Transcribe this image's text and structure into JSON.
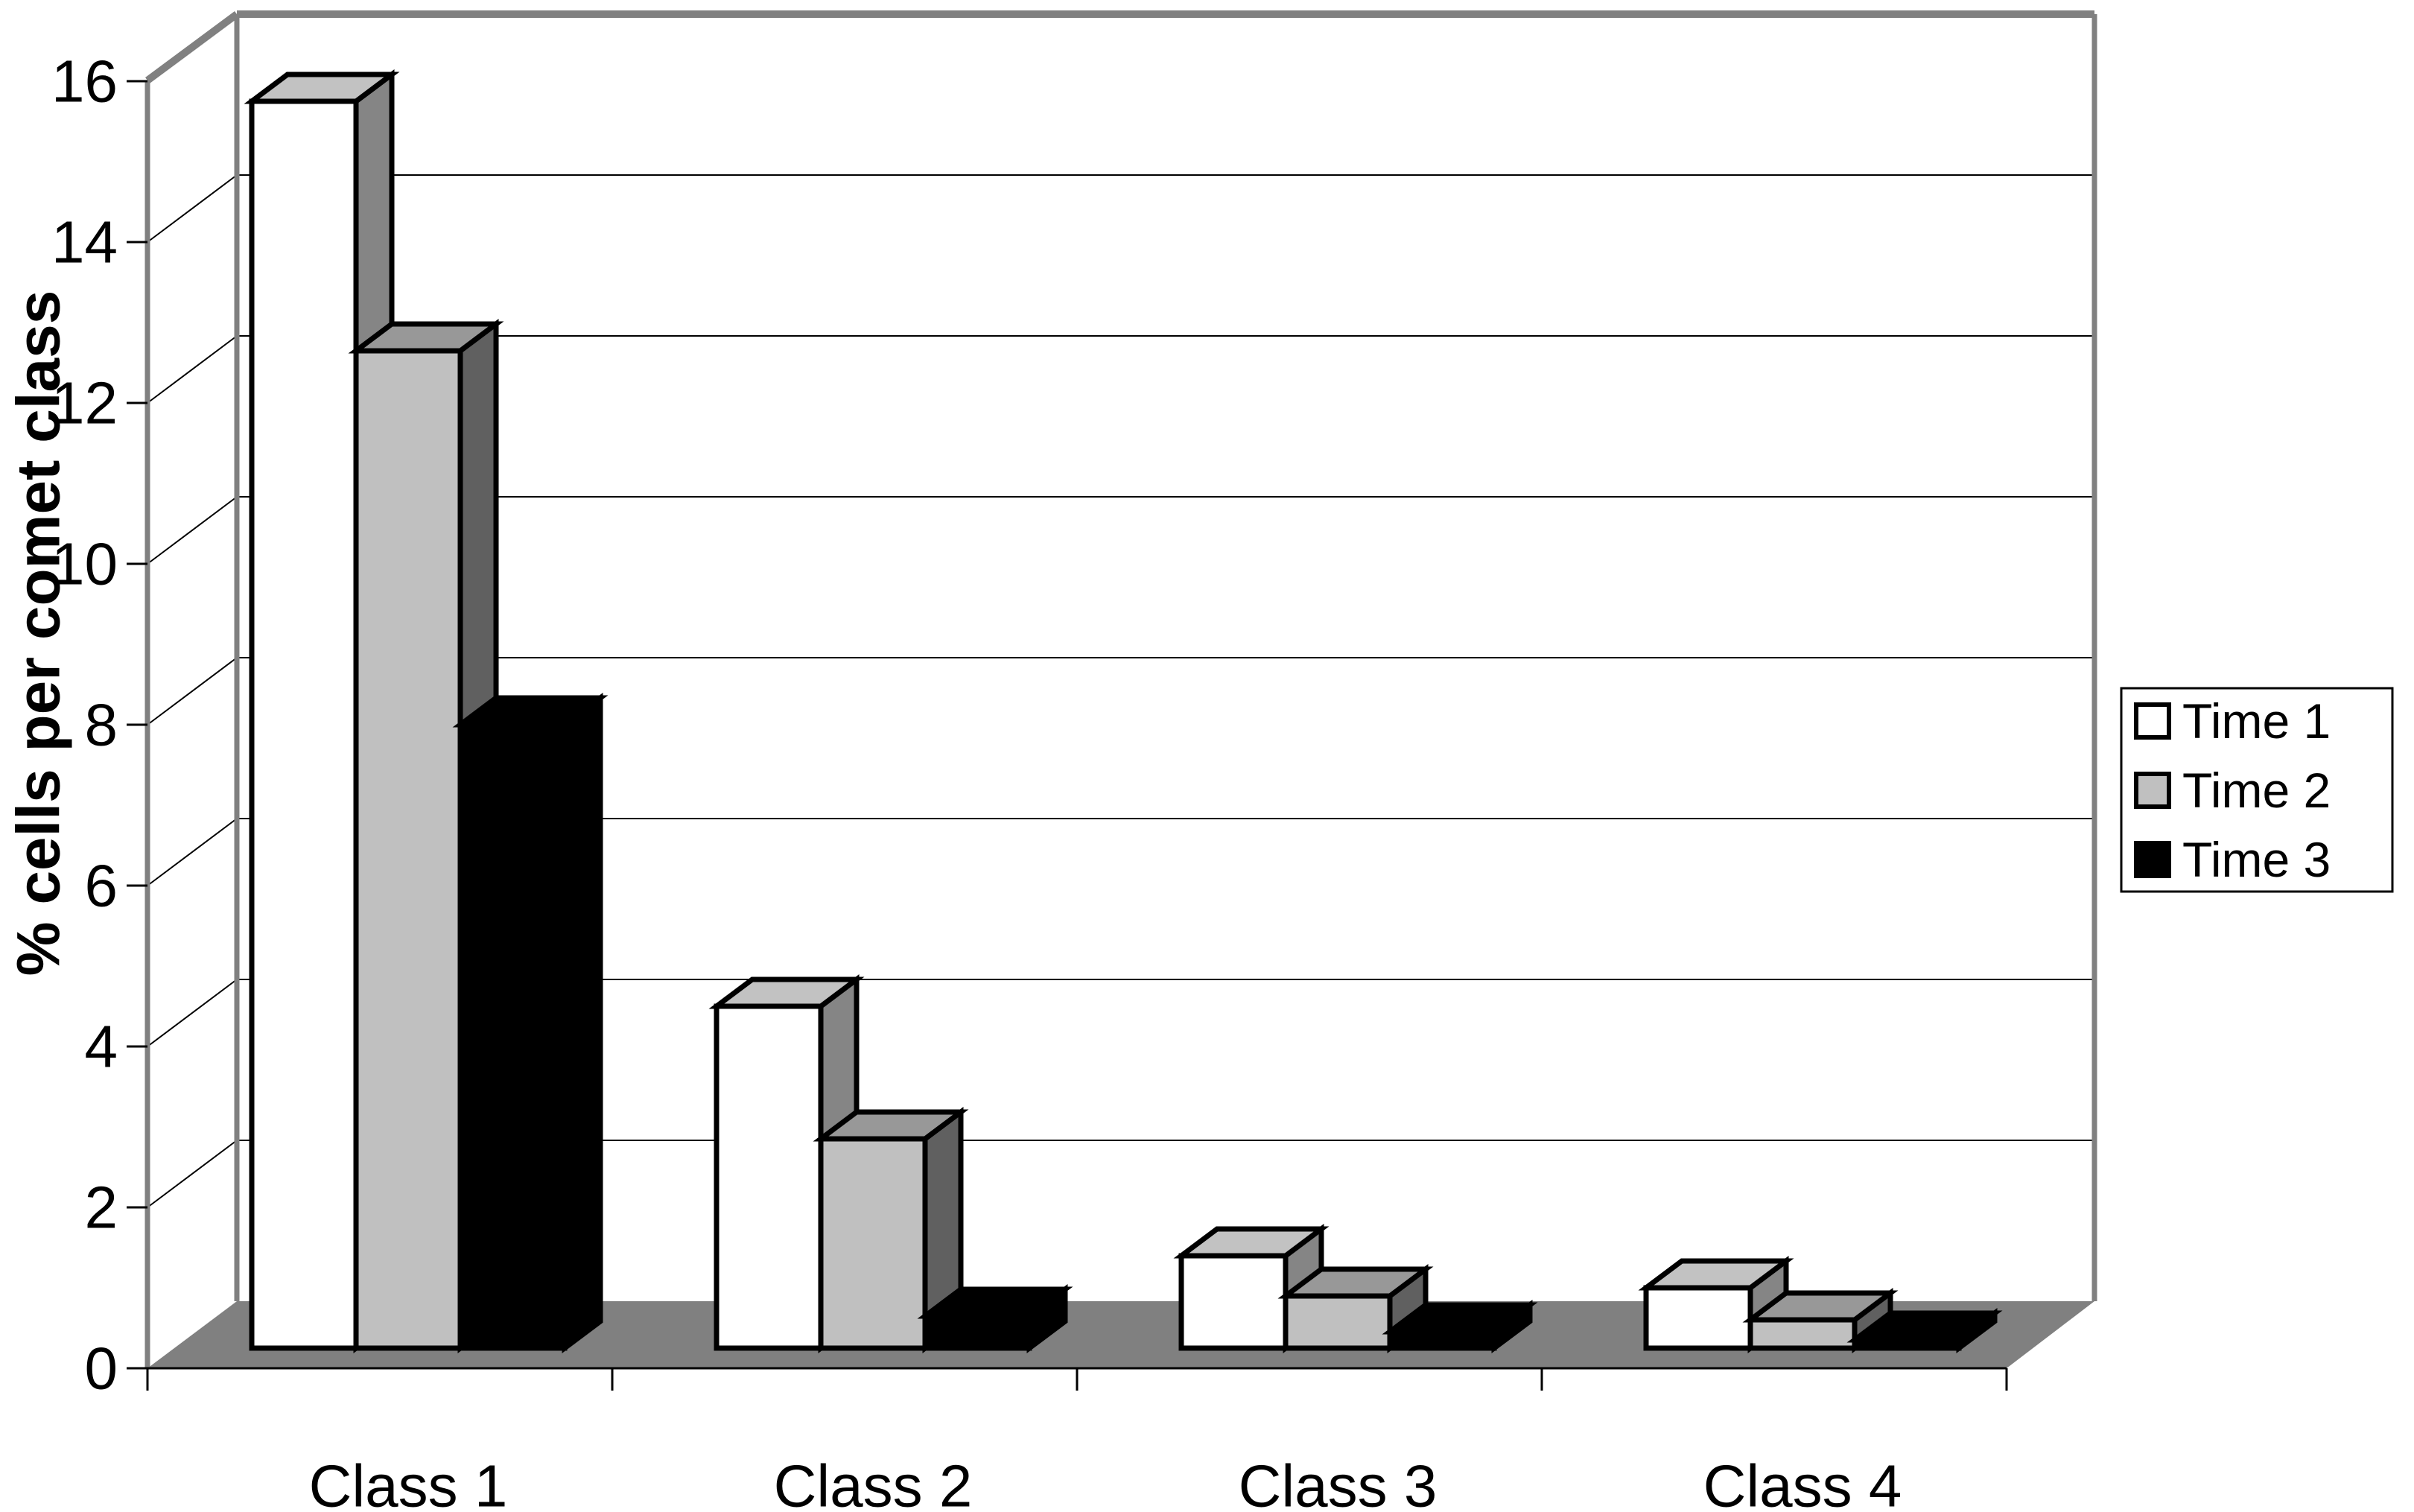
{
  "chart_data": {
    "type": "bar",
    "variant": "3d-clustered-column",
    "title": "",
    "xlabel": "",
    "ylabel": "% cells per comet class",
    "categories": [
      "Class 1",
      "Class 2",
      "Class 3",
      "Class 4"
    ],
    "series": [
      {
        "name": "Time 1",
        "values": [
          15.5,
          4.25,
          1.15,
          0.75
        ],
        "fill": "#ffffff",
        "top": "#c2c2c2",
        "side": "#858585"
      },
      {
        "name": "Time 2",
        "values": [
          12.4,
          2.6,
          0.65,
          0.35
        ],
        "fill": "#c0c0c0",
        "top": "#989898",
        "side": "#606060"
      },
      {
        "name": "Time 3",
        "values": [
          7.75,
          0.4,
          0.2,
          0.1
        ],
        "fill": "#000000",
        "top": "#000000",
        "side": "#000000"
      }
    ],
    "ylim": [
      0,
      16
    ],
    "ytick_step": 2,
    "yticks": [
      "0",
      "2",
      "4",
      "6",
      "8",
      "10",
      "12",
      "14",
      "16"
    ],
    "grid": true,
    "legend_position": "right",
    "colors": {
      "background": "#ffffff",
      "floor": "#808080",
      "wall": "#ffffff",
      "wall_edge": "#808080",
      "gridline": "#000000",
      "bar_outline": "#000000",
      "axis_line": "#000000",
      "legend_border": "#000000"
    }
  }
}
